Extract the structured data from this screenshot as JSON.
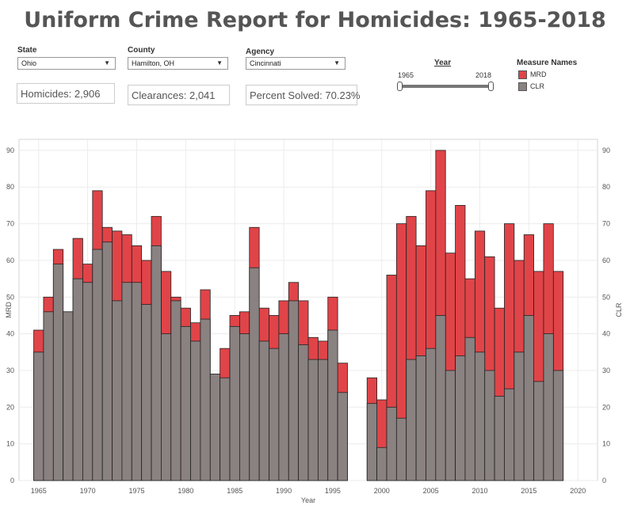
{
  "header": {
    "title": "Uniform Crime Report for Homicides: 1965-2018"
  },
  "filters": {
    "state": {
      "label": "State",
      "value": "Ohio"
    },
    "county": {
      "label": "County",
      "value": "Hamilton, OH"
    },
    "agency": {
      "label": "Agency",
      "value": "Cincinnati"
    }
  },
  "kpis": {
    "homicides": "Homicides: 2,906",
    "clearances": "Clearances: 2,041",
    "percent_solved": "Percent Solved: 70.23%"
  },
  "year_slider": {
    "label": "Year",
    "min": "1965",
    "max": "2018"
  },
  "legend": {
    "title": "Measure Names",
    "items": [
      {
        "label": "MRD",
        "color": "#e04448"
      },
      {
        "label": "CLR",
        "color": "#8a8181"
      }
    ]
  },
  "chart_data": {
    "type": "bar",
    "xlabel": "Year",
    "ylabel_left": "MRD",
    "ylabel_right": "CLR",
    "ylim": [
      0,
      93
    ],
    "xlim": [
      1963,
      2022
    ],
    "yticks": [
      0,
      10,
      20,
      30,
      40,
      50,
      60,
      70,
      80,
      90
    ],
    "xticks": [
      1965,
      1970,
      1975,
      1980,
      1985,
      1990,
      1995,
      2000,
      2005,
      2010,
      2015,
      2020
    ],
    "grid": true,
    "series": [
      {
        "name": "MRD",
        "color": "#e04448",
        "x": [
          1965,
          1966,
          1967,
          1968,
          1969,
          1970,
          1971,
          1972,
          1973,
          1974,
          1975,
          1976,
          1977,
          1978,
          1979,
          1980,
          1981,
          1982,
          1983,
          1984,
          1985,
          1986,
          1987,
          1988,
          1989,
          1990,
          1991,
          1992,
          1993,
          1994,
          1995,
          1996,
          1999,
          2000,
          2001,
          2002,
          2003,
          2004,
          2005,
          2006,
          2007,
          2008,
          2009,
          2010,
          2011,
          2012,
          2013,
          2014,
          2015,
          2016,
          2017,
          2018
        ],
        "values": [
          41,
          50,
          63,
          46,
          66,
          59,
          79,
          69,
          68,
          67,
          64,
          60,
          72,
          57,
          50,
          47,
          43,
          52,
          29,
          36,
          45,
          46,
          69,
          47,
          45,
          49,
          54,
          49,
          39,
          38,
          50,
          32,
          28,
          22,
          56,
          70,
          72,
          64,
          79,
          90,
          62,
          75,
          55,
          68,
          61,
          47,
          70,
          60,
          67,
          57,
          70,
          57
        ]
      },
      {
        "name": "CLR",
        "color": "#8a8181",
        "x": [
          1965,
          1966,
          1967,
          1968,
          1969,
          1970,
          1971,
          1972,
          1973,
          1974,
          1975,
          1976,
          1977,
          1978,
          1979,
          1980,
          1981,
          1982,
          1983,
          1984,
          1985,
          1986,
          1987,
          1988,
          1989,
          1990,
          1991,
          1992,
          1993,
          1994,
          1995,
          1996,
          1999,
          2000,
          2001,
          2002,
          2003,
          2004,
          2005,
          2006,
          2007,
          2008,
          2009,
          2010,
          2011,
          2012,
          2013,
          2014,
          2015,
          2016,
          2017,
          2018
        ],
        "values": [
          35,
          46,
          59,
          46,
          55,
          54,
          63,
          65,
          49,
          54,
          54,
          48,
          64,
          40,
          49,
          42,
          38,
          44,
          29,
          28,
          42,
          40,
          58,
          38,
          36,
          40,
          49,
          37,
          33,
          33,
          41,
          24,
          21,
          9,
          20,
          17,
          33,
          34,
          36,
          45,
          30,
          34,
          39,
          35,
          30,
          23,
          25,
          35,
          45,
          27,
          40,
          30
        ]
      }
    ]
  }
}
